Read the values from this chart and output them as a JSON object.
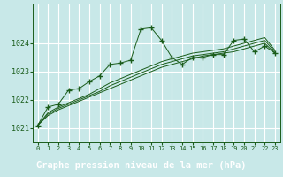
{
  "bg_color": "#c8e8e8",
  "plot_bg": "#c8e8e8",
  "grid_color": "#ffffff",
  "line_color": "#1a5c1a",
  "xlabel": "Graphe pression niveau de la mer (hPa)",
  "xlabel_fontsize": 7.5,
  "xlabel_bg": "#1a5c1a",
  "xlabel_fg": "#ffffff",
  "ylabel_ticks": [
    1021,
    1022,
    1023,
    1024
  ],
  "xlim": [
    -0.5,
    23.5
  ],
  "ylim": [
    1020.5,
    1025.4
  ],
  "xtick_labels": [
    "0",
    "1",
    "2",
    "3",
    "4",
    "5",
    "6",
    "7",
    "8",
    "9",
    "10",
    "11",
    "12",
    "13",
    "14",
    "15",
    "16",
    "17",
    "18",
    "19",
    "20",
    "21",
    "22",
    "23"
  ],
  "series_main": [
    1021.1,
    1021.75,
    1021.85,
    1022.35,
    1022.4,
    1022.65,
    1022.85,
    1023.25,
    1023.3,
    1023.4,
    1024.5,
    1024.55,
    1024.1,
    1023.5,
    1023.25,
    1023.5,
    1023.5,
    1023.6,
    1023.6,
    1024.1,
    1024.15,
    1023.7,
    1023.9,
    1023.65
  ],
  "series_smooth1": [
    1021.1,
    1021.45,
    1021.65,
    1021.8,
    1021.95,
    1022.1,
    1022.25,
    1022.4,
    1022.55,
    1022.7,
    1022.85,
    1023.0,
    1023.15,
    1023.25,
    1023.35,
    1023.45,
    1023.55,
    1023.6,
    1023.65,
    1023.7,
    1023.8,
    1023.9,
    1024.0,
    1023.65
  ],
  "series_smooth2": [
    1021.1,
    1021.5,
    1021.7,
    1021.85,
    1022.0,
    1022.15,
    1022.3,
    1022.5,
    1022.65,
    1022.8,
    1022.95,
    1023.1,
    1023.25,
    1023.35,
    1023.45,
    1023.55,
    1023.6,
    1023.65,
    1023.7,
    1023.8,
    1023.9,
    1024.0,
    1024.1,
    1023.7
  ],
  "series_smooth3": [
    1021.1,
    1021.55,
    1021.75,
    1021.9,
    1022.05,
    1022.2,
    1022.4,
    1022.6,
    1022.75,
    1022.9,
    1023.05,
    1023.2,
    1023.35,
    1023.45,
    1023.55,
    1023.65,
    1023.7,
    1023.75,
    1023.8,
    1023.9,
    1024.0,
    1024.1,
    1024.2,
    1023.75
  ]
}
